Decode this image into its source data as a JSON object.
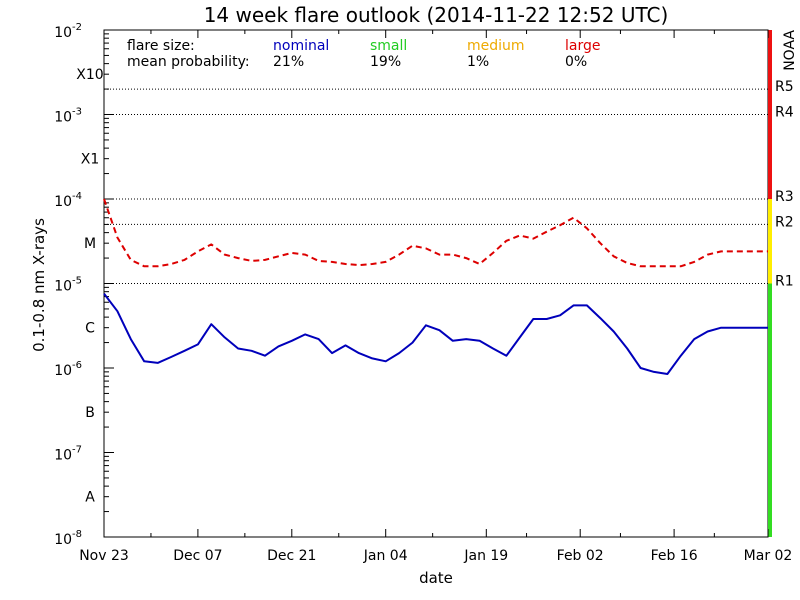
{
  "chart_data": {
    "type": "line",
    "title": "14 week flare outlook (2014-11-22 12:52 UTC)",
    "xlabel": "date",
    "ylabel": "0.1-0.8 nm X-rays",
    "x_tick_labels": [
      "Nov 23",
      "Dec 07",
      "Dec 21",
      "Jan 04",
      "Jan 19",
      "Feb 02",
      "Feb 16",
      "Mar 02"
    ],
    "x_tick_days": [
      0,
      14,
      28,
      42,
      57,
      71,
      85,
      99
    ],
    "xlim": [
      0,
      99
    ],
    "yscale": "log",
    "ylim": [
      1e-08,
      0.01
    ],
    "y_decades": [
      {
        "exp": -8,
        "label": "10",
        "sup": "-8"
      },
      {
        "exp": -7,
        "label": "10",
        "sup": "-7"
      },
      {
        "exp": -6,
        "label": "10",
        "sup": "-6"
      },
      {
        "exp": -5,
        "label": "10",
        "sup": "-5"
      },
      {
        "exp": -4,
        "label": "10",
        "sup": "-4"
      },
      {
        "exp": -3,
        "label": "10",
        "sup": "-3"
      },
      {
        "exp": -2,
        "label": "10",
        "sup": "-2"
      }
    ],
    "flare_classes": [
      {
        "label": "A",
        "value": 3e-08
      },
      {
        "label": "B",
        "value": 3e-07
      },
      {
        "label": "C",
        "value": 3e-06
      },
      {
        "label": "M",
        "value": 3e-05
      },
      {
        "label": "X1",
        "value": 0.0003
      },
      {
        "label": "X10",
        "value": 0.003
      }
    ],
    "noaa_title": "NOAA",
    "noaa_scale": [
      {
        "label": "R1",
        "value": 1e-05
      },
      {
        "label": "R2",
        "value": 5e-05
      },
      {
        "label": "R3",
        "value": 0.0001
      },
      {
        "label": "R4",
        "value": 0.001
      },
      {
        "label": "R5",
        "value": 0.002
      }
    ],
    "noaa_bar_segments": [
      {
        "from": 1e-08,
        "to": 1e-05,
        "color": "#33dd22"
      },
      {
        "from": 1e-05,
        "to": 0.0001,
        "color": "#ffee00"
      },
      {
        "from": 0.0001,
        "to": 0.01,
        "color": "#ee1111"
      }
    ],
    "reference_lines": [
      1e-05,
      5e-05,
      0.0001,
      0.001,
      0.002
    ],
    "legend": {
      "header1": "flare size:",
      "header2": "mean probability:",
      "items": [
        {
          "name": "nominal",
          "probability": "21%",
          "color": "#0000bb"
        },
        {
          "name": "small",
          "probability": "19%",
          "color": "#22cc22"
        },
        {
          "name": "medium",
          "probability": "1%",
          "color": "#eeaa00"
        },
        {
          "name": "large",
          "probability": "0%",
          "color": "#dd0000"
        }
      ]
    },
    "series": [
      {
        "name": "nominal",
        "color": "#0000bb",
        "style": "solid",
        "x": [
          0,
          2,
          4,
          6,
          8,
          10,
          12,
          14,
          16,
          18,
          20,
          22,
          24,
          26,
          28,
          30,
          32,
          34,
          36,
          38,
          40,
          42,
          44,
          46,
          48,
          50,
          52,
          54,
          56,
          58,
          60,
          62,
          64,
          66,
          68,
          70,
          72,
          74,
          76,
          78,
          80,
          82,
          84,
          86,
          88,
          90,
          92,
          94,
          96,
          98,
          99
        ],
        "y": [
          7.6e-06,
          4.7e-06,
          2.2e-06,
          1.2e-06,
          1.15e-06,
          1.35e-06,
          1.6e-06,
          1.9e-06,
          3.3e-06,
          2.3e-06,
          1.7e-06,
          1.6e-06,
          1.4e-06,
          1.8e-06,
          2.1e-06,
          2.5e-06,
          2.2e-06,
          1.5e-06,
          1.85e-06,
          1.5e-06,
          1.3e-06,
          1.2e-06,
          1.5e-06,
          2e-06,
          3.2e-06,
          2.8e-06,
          2.1e-06,
          2.2e-06,
          2.1e-06,
          1.7e-06,
          1.4e-06,
          2.3e-06,
          3.8e-06,
          3.8e-06,
          4.2e-06,
          5.5e-06,
          5.5e-06,
          3.9e-06,
          2.7e-06,
          1.7e-06,
          1e-06,
          9e-07,
          8.5e-07,
          1.4e-06,
          2.2e-06,
          2.7e-06,
          3e-06,
          3e-06,
          3e-06,
          3e-06,
          3e-06
        ]
      },
      {
        "name": "large",
        "color": "#dd0000",
        "style": "dashed",
        "x": [
          0,
          2,
          4,
          6,
          8,
          10,
          12,
          14,
          16,
          18,
          20,
          22,
          24,
          26,
          28,
          30,
          32,
          34,
          36,
          38,
          40,
          42,
          44,
          46,
          48,
          50,
          52,
          54,
          56,
          58,
          60,
          62,
          64,
          66,
          68,
          70,
          72,
          74,
          76,
          78,
          80,
          82,
          84,
          86,
          88,
          90,
          92,
          94,
          96,
          98,
          99
        ],
        "y": [
          0.0001,
          3.5e-05,
          1.9e-05,
          1.6e-05,
          1.6e-05,
          1.7e-05,
          1.9e-05,
          2.4e-05,
          2.9e-05,
          2.2e-05,
          2e-05,
          1.85e-05,
          1.9e-05,
          2.1e-05,
          2.3e-05,
          2.2e-05,
          1.85e-05,
          1.8e-05,
          1.7e-05,
          1.65e-05,
          1.7e-05,
          1.8e-05,
          2.2e-05,
          2.8e-05,
          2.6e-05,
          2.2e-05,
          2.2e-05,
          2e-05,
          1.7e-05,
          2.3e-05,
          3.2e-05,
          3.7e-05,
          3.4e-05,
          4.1e-05,
          4.9e-05,
          6e-05,
          4.5e-05,
          3e-05,
          2.1e-05,
          1.75e-05,
          1.6e-05,
          1.6e-05,
          1.6e-05,
          1.6e-05,
          1.8e-05,
          2.2e-05,
          2.4e-05,
          2.4e-05,
          2.4e-05,
          2.4e-05,
          2.4e-05
        ]
      }
    ]
  }
}
